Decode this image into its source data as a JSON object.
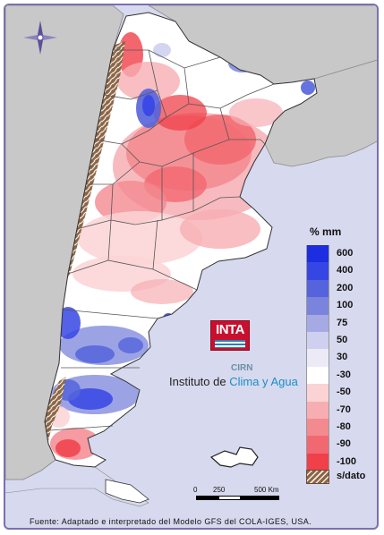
{
  "legend": {
    "title": "% mm",
    "items": [
      {
        "label": "600",
        "color": "#1c2ee0"
      },
      {
        "label": "400",
        "color": "#3646e4"
      },
      {
        "label": "200",
        "color": "#5564dc"
      },
      {
        "label": "100",
        "color": "#7a84dc"
      },
      {
        "label": "75",
        "color": "#a5aae4"
      },
      {
        "label": "50",
        "color": "#cfd0ef"
      },
      {
        "label": "30",
        "color": "#eceaf7"
      },
      {
        "label": "-30",
        "color": "#ffffff"
      },
      {
        "label": "-50",
        "color": "#fbd3d5"
      },
      {
        "label": "-70",
        "color": "#f6aeb3"
      },
      {
        "label": "-80",
        "color": "#f38a90"
      },
      {
        "label": "-90",
        "color": "#f26870"
      },
      {
        "label": "-100",
        "color": "#f0404a"
      }
    ],
    "no_data": {
      "label": "s/dato",
      "color": "#8b6547"
    }
  },
  "logo": {
    "inta": "INTA",
    "cirn": "CIRN",
    "institute_prefix": "Instituto de ",
    "institute_accent": "Clima y Agua"
  },
  "scale": {
    "labels": [
      "0",
      "250",
      "500 Km"
    ]
  },
  "footer": "Fuente: Adaptado e interpretado del Modelo GFS del COLA-IGES, USA.",
  "colors": {
    "land": "#ffffff",
    "neighbors": "#c8c8c8",
    "ocean": "#d7d9ee",
    "border": "#7b6fb0",
    "no_data_hatch": "#8b6547"
  }
}
